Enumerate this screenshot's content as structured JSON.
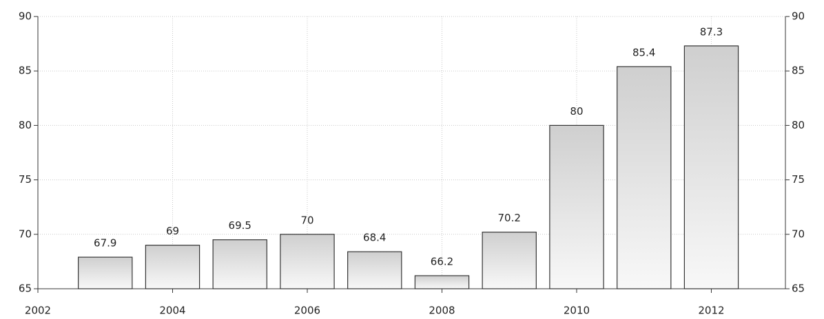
{
  "chart_data": {
    "type": "bar",
    "x": [
      2003,
      2004,
      2005,
      2006,
      2007,
      2008,
      2009,
      2010,
      2011,
      2012
    ],
    "values": [
      67.9,
      69,
      69.5,
      70,
      68.4,
      66.2,
      70.2,
      80,
      85.4,
      87.3
    ],
    "xlim": [
      2002,
      2013.1
    ],
    "xticks": [
      2002,
      2004,
      2006,
      2008,
      2010,
      2012
    ],
    "ylim": [
      65,
      90
    ],
    "yticks": [
      65,
      70,
      75,
      80,
      85,
      90
    ],
    "grid": true,
    "bar_width": 0.8
  }
}
